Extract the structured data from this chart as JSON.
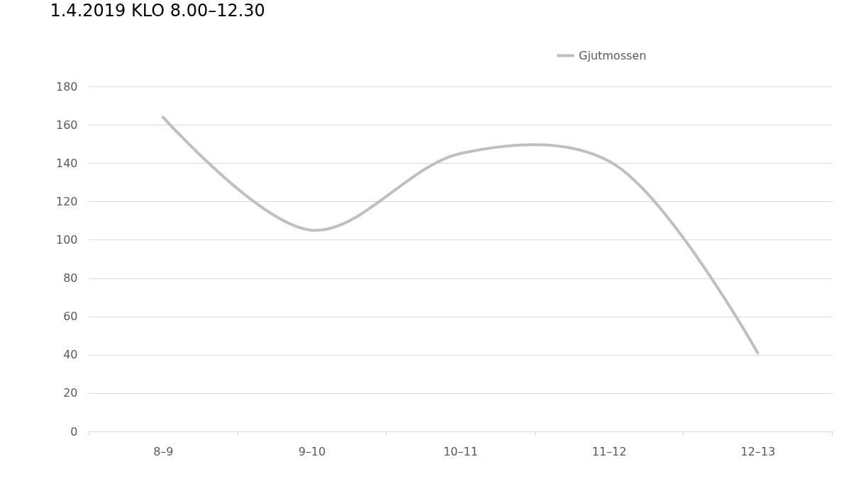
{
  "chart_data": {
    "type": "line",
    "title": "1.4.2019 KLO 8.00–12.30",
    "categories": [
      "8–9",
      "9–10",
      "10–11",
      "11–12",
      "12–13"
    ],
    "series": [
      {
        "name": "Gjutmossen",
        "color": "#bfbfbf",
        "values": [
          164,
          105,
          145,
          141,
          41
        ]
      }
    ],
    "ylim": [
      0,
      180
    ],
    "yticks": [
      0,
      20,
      40,
      60,
      80,
      100,
      120,
      140,
      160,
      180
    ],
    "grid": "y",
    "legend": "top right",
    "marker": "none",
    "line_style": "solid"
  }
}
